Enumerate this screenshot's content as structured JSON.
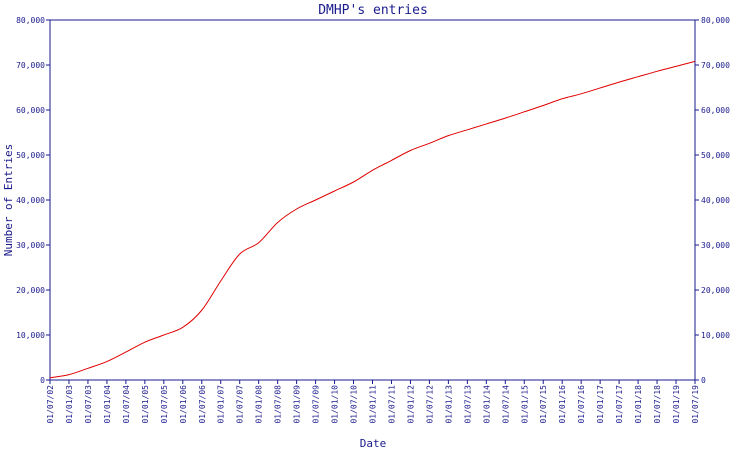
{
  "chart_data": {
    "type": "line",
    "title": "DMHP's entries",
    "xlabel": "Date",
    "ylabel": "Number of Entries",
    "ylim": [
      0,
      80000
    ],
    "yticks": [
      0,
      10000,
      20000,
      30000,
      40000,
      50000,
      60000,
      70000,
      80000
    ],
    "ytick_labels": [
      "0",
      "10,000",
      "20,000",
      "30,000",
      "40,000",
      "50,000",
      "60,000",
      "70,000",
      "80,000"
    ],
    "xticks": [
      "01/07/02",
      "01/01/03",
      "01/07/03",
      "01/01/04",
      "01/07/04",
      "01/01/05",
      "01/07/05",
      "01/01/06",
      "01/07/06",
      "01/01/07",
      "01/07/07",
      "01/01/08",
      "01/07/08",
      "01/01/09",
      "01/07/09",
      "01/01/10",
      "01/07/10",
      "01/01/11",
      "01/07/11",
      "01/01/12",
      "01/07/12",
      "01/01/13",
      "01/07/13",
      "01/01/14",
      "01/07/14",
      "01/01/15",
      "01/07/15",
      "01/01/16",
      "01/07/16",
      "01/01/17",
      "01/07/17",
      "01/01/18",
      "01/07/18",
      "01/01/19",
      "01/07/19"
    ],
    "grid": false,
    "legend": "none",
    "series": [
      {
        "color": "#e00000",
        "x": [
          "01/07/02",
          "01/01/03",
          "01/07/03",
          "01/01/04",
          "01/07/04",
          "01/01/05",
          "01/07/05",
          "01/01/06",
          "01/07/06",
          "01/01/07",
          "01/07/07",
          "01/01/08",
          "01/07/08",
          "01/01/09",
          "01/07/09",
          "01/01/10",
          "01/07/10",
          "01/01/11",
          "01/07/11",
          "01/01/12",
          "01/07/12",
          "01/01/13",
          "01/07/13",
          "01/01/14",
          "01/07/14",
          "01/01/15",
          "01/07/15",
          "01/01/16",
          "01/07/16",
          "01/01/17",
          "01/07/17",
          "01/01/18",
          "01/07/18",
          "01/01/19",
          "01/07/19"
        ],
        "values": [
          500,
          1200,
          2600,
          4100,
          6200,
          8400,
          10000,
          11700,
          15500,
          22000,
          28000,
          30500,
          35000,
          38000,
          40000,
          42000,
          44000,
          46600,
          48800,
          51000,
          52600,
          54300,
          55600,
          56900,
          58200,
          59600,
          61000,
          62500,
          63600,
          64900,
          66200,
          67400,
          68600,
          69700,
          70800
        ]
      }
    ]
  }
}
